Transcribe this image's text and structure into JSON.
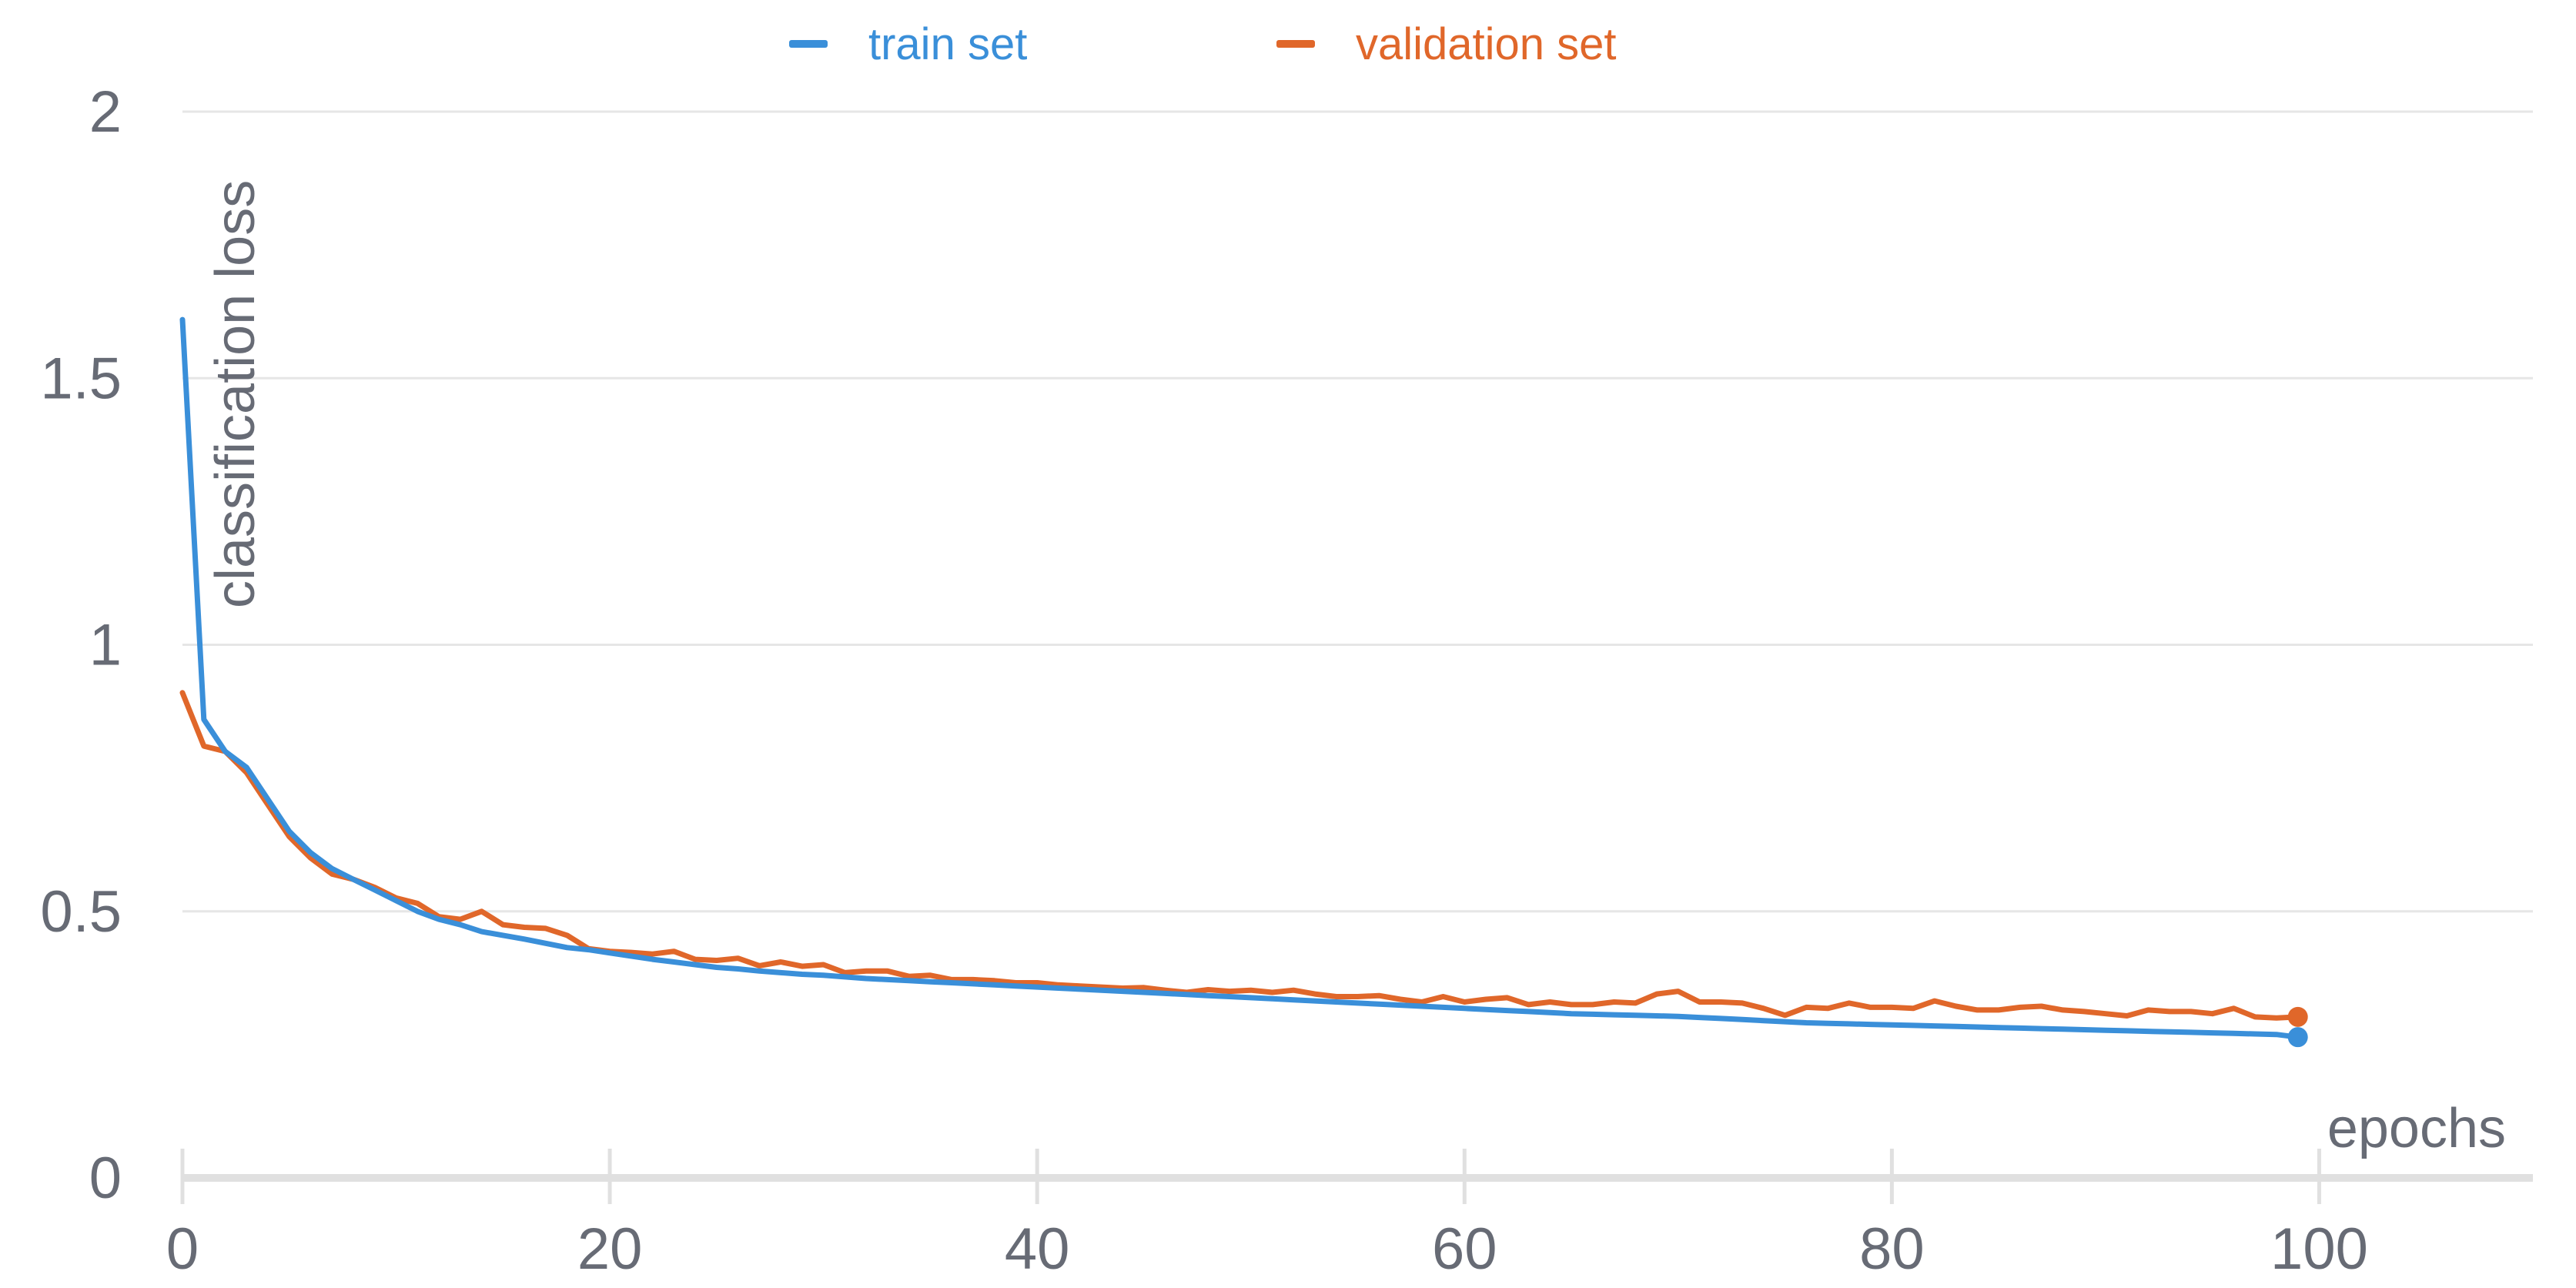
{
  "chart_data": {
    "type": "line",
    "xlabel": "epochs",
    "ylabel": "classification loss",
    "xlim": [
      0,
      110
    ],
    "ylim": [
      0,
      2
    ],
    "x_ticks": [
      "0",
      "20",
      "40",
      "60",
      "80",
      "100"
    ],
    "y_ticks": [
      "0",
      "0.5",
      "1",
      "1.5",
      "2"
    ],
    "x_tick_values": [
      0,
      20,
      40,
      60,
      80,
      100
    ],
    "y_tick_values": [
      0,
      0.5,
      1,
      1.5,
      2
    ],
    "grid": "horizontal",
    "legend_position": "top",
    "x": [
      0,
      1,
      2,
      3,
      4,
      5,
      6,
      7,
      8,
      9,
      10,
      11,
      12,
      13,
      14,
      15,
      16,
      17,
      18,
      19,
      20,
      21,
      22,
      23,
      24,
      25,
      26,
      27,
      28,
      29,
      30,
      31,
      32,
      33,
      34,
      35,
      36,
      37,
      38,
      39,
      40,
      41,
      42,
      43,
      44,
      45,
      46,
      47,
      48,
      49,
      50,
      51,
      52,
      53,
      54,
      55,
      56,
      57,
      58,
      59,
      60,
      61,
      62,
      63,
      64,
      65,
      66,
      67,
      68,
      69,
      70,
      71,
      72,
      73,
      74,
      75,
      76,
      77,
      78,
      79,
      80,
      81,
      82,
      83,
      84,
      85,
      86,
      87,
      88,
      89,
      90,
      91,
      92,
      93,
      94,
      95,
      96,
      97,
      98,
      99
    ],
    "series": [
      {
        "name": "train set",
        "color": "#3a8fd9",
        "values": [
          1.61,
          0.86,
          0.8,
          0.77,
          0.71,
          0.65,
          0.61,
          0.58,
          0.56,
          0.54,
          0.52,
          0.5,
          0.485,
          0.475,
          0.462,
          0.455,
          0.448,
          0.44,
          0.432,
          0.428,
          0.422,
          0.416,
          0.41,
          0.405,
          0.4,
          0.395,
          0.392,
          0.388,
          0.385,
          0.382,
          0.38,
          0.377,
          0.374,
          0.372,
          0.37,
          0.368,
          0.366,
          0.364,
          0.362,
          0.36,
          0.358,
          0.356,
          0.354,
          0.352,
          0.35,
          0.348,
          0.346,
          0.344,
          0.342,
          0.34,
          0.338,
          0.336,
          0.334,
          0.332,
          0.33,
          0.328,
          0.326,
          0.324,
          0.322,
          0.32,
          0.318,
          0.316,
          0.314,
          0.312,
          0.31,
          0.308,
          0.307,
          0.306,
          0.305,
          0.304,
          0.303,
          0.301,
          0.299,
          0.297,
          0.295,
          0.293,
          0.291,
          0.29,
          0.289,
          0.288,
          0.287,
          0.286,
          0.285,
          0.284,
          0.283,
          0.282,
          0.281,
          0.28,
          0.279,
          0.278,
          0.277,
          0.276,
          0.275,
          0.274,
          0.273,
          0.272,
          0.271,
          0.27,
          0.269,
          0.264
        ]
      },
      {
        "name": "validation set",
        "color": "#e0672a",
        "values": [
          0.91,
          0.81,
          0.8,
          0.76,
          0.7,
          0.64,
          0.6,
          0.57,
          0.56,
          0.545,
          0.525,
          0.515,
          0.49,
          0.485,
          0.5,
          0.475,
          0.47,
          0.468,
          0.455,
          0.43,
          0.425,
          0.423,
          0.42,
          0.425,
          0.41,
          0.408,
          0.412,
          0.398,
          0.405,
          0.397,
          0.4,
          0.385,
          0.388,
          0.388,
          0.378,
          0.38,
          0.372,
          0.372,
          0.37,
          0.366,
          0.366,
          0.362,
          0.36,
          0.358,
          0.356,
          0.357,
          0.352,
          0.348,
          0.353,
          0.35,
          0.352,
          0.348,
          0.352,
          0.345,
          0.34,
          0.34,
          0.342,
          0.335,
          0.33,
          0.34,
          0.33,
          0.335,
          0.338,
          0.325,
          0.33,
          0.325,
          0.325,
          0.33,
          0.328,
          0.345,
          0.35,
          0.33,
          0.33,
          0.328,
          0.318,
          0.305,
          0.32,
          0.318,
          0.328,
          0.32,
          0.32,
          0.318,
          0.332,
          0.322,
          0.315,
          0.315,
          0.32,
          0.322,
          0.315,
          0.312,
          0.308,
          0.304,
          0.315,
          0.312,
          0.312,
          0.308,
          0.318,
          0.302,
          0.3,
          0.302
        ]
      }
    ]
  }
}
